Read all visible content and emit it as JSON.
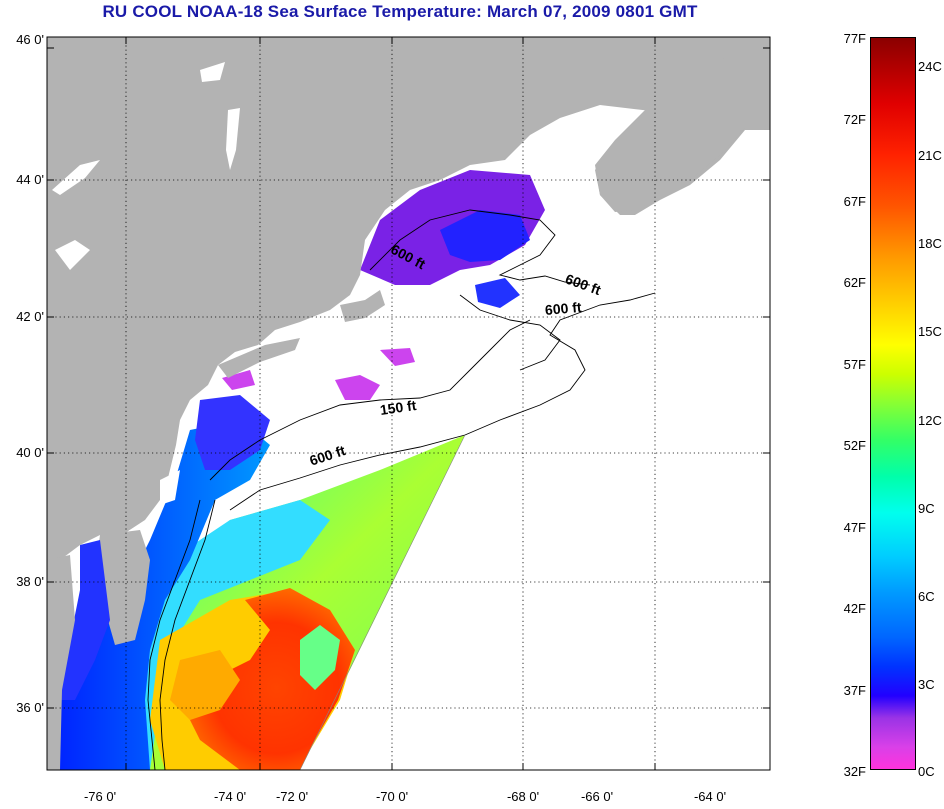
{
  "title": "RU COOL  NOAA-18  Sea Surface Temperature:  March 07, 2009 0801 GMT",
  "map": {
    "lat_ticks": [
      "46 0'",
      "44 0'",
      "42 0'",
      "40 0'",
      "38 0'",
      "36 0'"
    ],
    "lon_ticks": [
      "-76 0'",
      "-74 0'",
      "-72 0'",
      "-70 0'",
      "-68 0'",
      "-66 0'",
      "-64 0'"
    ],
    "contours": [
      {
        "text": "600 ft"
      },
      {
        "text": "600 ft"
      },
      {
        "text": "600 ft"
      },
      {
        "text": "150 ft"
      },
      {
        "text": "600 ft"
      }
    ],
    "colors": {
      "land": "#b3b3b3",
      "nodata": "#ffffff",
      "warm": "#ff3300",
      "cold": "#1a1aff"
    }
  },
  "colorbar": {
    "fahrenheit": [
      "77F",
      "72F",
      "67F",
      "62F",
      "57F",
      "52F",
      "47F",
      "42F",
      "37F",
      "32F"
    ],
    "celsius": [
      "24C",
      "21C",
      "18C",
      "15C",
      "12C",
      "9C",
      "6C",
      "3C",
      "0C"
    ]
  }
}
